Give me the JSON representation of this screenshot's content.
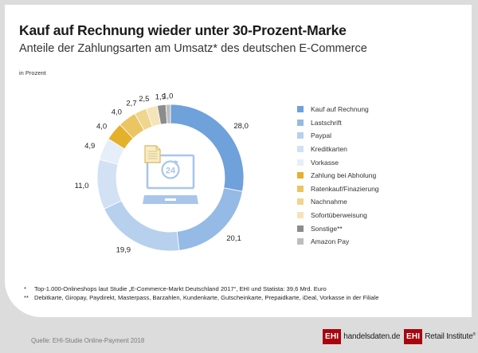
{
  "header": {
    "title": "Kauf auf Rechnung wieder unter 30-Prozent-Marke",
    "subtitle": "Anteile der Zahlungsarten am Umsatz* des deutschen E-Commerce",
    "unit": "in Prozent"
  },
  "chart_data": {
    "type": "pie",
    "variant": "donut",
    "title": "Kauf auf Rechnung wieder unter 30-Prozent-Marke",
    "subtitle": "Anteile der Zahlungsarten am Umsatz* des deutschen E-Commerce",
    "unit": "in Prozent",
    "start": "12 o'clock, clockwise",
    "legend_position": "right",
    "center_icon": "laptop-24h-invoice-icon",
    "categories": [
      "Kauf auf Rechnung",
      "Lastschrift",
      "Paypal",
      "Kreditkarten",
      "Vorkasse",
      "Zahlung bei Abholung",
      "Ratenkauf/Finazierung",
      "Nachnahme",
      "Sofortüberweisung",
      "Sonstige**",
      "Amazon Pay"
    ],
    "values": [
      28.0,
      20.1,
      19.9,
      11.0,
      4.9,
      4.0,
      4.0,
      2.7,
      2.5,
      1.9,
      1.0
    ],
    "value_labels": [
      "28,0",
      "20,1",
      "19,9",
      "11,0",
      "4,9",
      "4,0",
      "4,0",
      "2,7",
      "2,5",
      "1,9",
      "1,0"
    ],
    "colors": [
      "#6fa1db",
      "#95bae5",
      "#b7d0ee",
      "#d2e1f4",
      "#e6eef9",
      "#e3b12b",
      "#eac562",
      "#f0d58f",
      "#f5e4b8",
      "#8c8c8c",
      "#bdbdbd"
    ]
  },
  "footnotes": [
    {
      "mark": "*",
      "text": "Top-1.000-Onlineshops laut Studie „E-Commerce-Markt Deutschland 2017“, EHI und Statista: 39,6 Mrd. Euro"
    },
    {
      "mark": "**",
      "text": "Debitkarte, Giropay, Paydirekt, Masterpass, Barzahlen, Kundenkarte, Gutscheinkarte, Prepaidkarte, iDeal, Vorkasse in der Filiale"
    }
  ],
  "footer": {
    "source": "Quelle: EHI-Studie Online-Payment 2018",
    "logos": [
      {
        "badge": "EHI",
        "text": "handelsdaten.de"
      },
      {
        "badge": "EHI",
        "text": "Retail Institute",
        "sup": "®"
      }
    ],
    "brand_color": "#a8060e"
  }
}
